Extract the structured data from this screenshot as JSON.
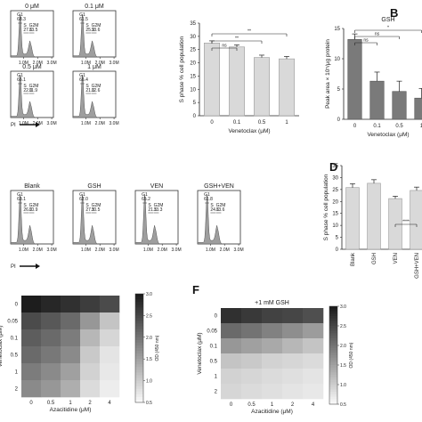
{
  "panel_letters": {
    "b": "B",
    "d": "D",
    "f": "F"
  },
  "histogram_axis": {
    "xlabel": "PI",
    "x_ticks": [
      "1.0M",
      "2.0M",
      "3.0M"
    ]
  },
  "histograms_top": [
    {
      "title": "0 μM",
      "g1": "G1",
      "s": "S",
      "g2m": "G2M",
      "g1_pct": "68.3",
      "s_pct": "27.6",
      "g2m_pct": "13.5"
    },
    {
      "title": "0.1 μM",
      "g1": "G1",
      "s": "S",
      "g2m": "G2M",
      "g1_pct": "61.5",
      "s_pct": "25.9",
      "g2m_pct": "13.6"
    },
    {
      "title": "0.5 μM",
      "g1": "G1",
      "s": "S",
      "g2m": "G2M",
      "g1_pct": "66.1",
      "s_pct": "22.0",
      "g2m_pct": "11.9"
    },
    {
      "title": "1 μM",
      "g1": "G1",
      "s": "S",
      "g2m": "G2M",
      "g1_pct": "66.4",
      "s_pct": "21.0",
      "g2m_pct": "12.6"
    }
  ],
  "histograms_bottom": [
    {
      "title": "Blank",
      "g1": "G1",
      "s": "S",
      "g2m": "G2M",
      "g1_pct": "63.1",
      "s_pct": "26.0",
      "g2m_pct": "10.9"
    },
    {
      "title": "GSH",
      "g1": "G1",
      "s": "S",
      "g2m": "G2M",
      "g1_pct": "62.0",
      "s_pct": "27.5",
      "g2m_pct": "10.5"
    },
    {
      "title": "VEN",
      "g1": "G1",
      "s": "S",
      "g2m": "G2M",
      "g1_pct": "65.2",
      "s_pct": "21.5",
      "g2m_pct": "13.3"
    },
    {
      "title": "GSH+VEN",
      "g1": "G1",
      "s": "S",
      "g2m": "G2M",
      "g1_pct": "61.8",
      "s_pct": "24.6",
      "g2m_pct": "13.6"
    }
  ],
  "chart_data": [
    {
      "id": "A_bar",
      "type": "bar",
      "categories": [
        "0",
        "0.1",
        "0.5",
        "1"
      ],
      "values": [
        27.5,
        26.0,
        22.0,
        21.5
      ],
      "errors": [
        0.8,
        0.8,
        0.9,
        0.9
      ],
      "xlabel": "Venetoclax (μM)",
      "ylabel": "S phase % cell population",
      "ylim": [
        0,
        35
      ],
      "yticks": [
        "0",
        "5",
        "10",
        "15",
        "20",
        "25",
        "30",
        "35"
      ],
      "significance": [
        "**",
        "**",
        "ns"
      ],
      "colors": {
        "bar": "#d9d9d9",
        "edge": "#9a9a9a"
      }
    },
    {
      "id": "B_bar",
      "type": "bar",
      "title": "GSH",
      "categories": [
        "0",
        "0.1",
        "0.5",
        "1"
      ],
      "values": [
        13.2,
        6.3,
        4.6,
        3.5
      ],
      "errors": [
        0.9,
        1.5,
        1.7,
        1.6
      ],
      "xlabel": "Venetoclax (μM)",
      "ylabel": "Peak area × 10⁵/μg protein",
      "ylim": [
        0,
        15
      ],
      "yticks": [
        "0",
        "5",
        "10",
        "15"
      ],
      "significance": [
        "*",
        "ns",
        "ns"
      ],
      "colors": {
        "bar": "#7a7a7a",
        "edge": "#555555"
      }
    },
    {
      "id": "D_bar",
      "type": "bar",
      "categories": [
        "Blank",
        "GSH",
        "VEN",
        "GSH+VEN"
      ],
      "values": [
        25.8,
        27.6,
        21.2,
        24.6
      ],
      "errors": [
        1.6,
        1.5,
        1.0,
        1.4
      ],
      "ylabel": "S phase % cell population",
      "ylim": [
        0,
        35
      ],
      "yticks": [
        "0",
        "5",
        "10",
        "15",
        "20",
        "25",
        "30",
        "35"
      ],
      "significance": [
        "****"
      ],
      "colors": {
        "bar": "#d9d9d9",
        "edge": "#9a9a9a"
      }
    },
    {
      "id": "E_heatmap",
      "type": "heatmap",
      "x_categories": [
        "0",
        "0.5",
        "1",
        "2",
        "4"
      ],
      "y_categories": [
        "0",
        "0.05",
        "0.1",
        "0.5",
        "1",
        "2"
      ],
      "values": [
        [
          2.95,
          2.85,
          2.75,
          2.6,
          2.45
        ],
        [
          2.45,
          2.3,
          2.1,
          1.6,
          1.1
        ],
        [
          2.25,
          2.1,
          1.9,
          1.25,
          0.9
        ],
        [
          2.1,
          1.95,
          1.75,
          1.05,
          0.75
        ],
        [
          1.9,
          1.75,
          1.5,
          0.95,
          0.7
        ],
        [
          1.75,
          1.6,
          1.35,
          0.85,
          0.65
        ]
      ],
      "xlabel": "Azacitidine (μM)",
      "ylabel": "Venetoclax (μM)",
      "colorbar_label": "OD (450 nm)",
      "vmin": 0.5,
      "vmax": 3.0,
      "colorbar_ticks": [
        "0.5",
        "1.0",
        "1.5",
        "2.0",
        "2.5",
        "3.0"
      ]
    },
    {
      "id": "F_heatmap",
      "type": "heatmap",
      "title": "+1 mM GSH",
      "x_categories": [
        "0",
        "0.5",
        "1",
        "2",
        "4"
      ],
      "y_categories": [
        "0",
        "0.05",
        "0.1",
        "0.5",
        "1",
        "2"
      ],
      "values": [
        [
          2.75,
          2.65,
          2.55,
          2.5,
          2.4
        ],
        [
          2.1,
          2.0,
          1.85,
          1.7,
          1.55
        ],
        [
          1.6,
          1.5,
          1.4,
          1.25,
          1.1
        ],
        [
          1.1,
          1.05,
          0.95,
          0.9,
          0.85
        ],
        [
          0.95,
          0.9,
          0.85,
          0.8,
          0.75
        ],
        [
          0.9,
          0.85,
          0.8,
          0.75,
          0.7
        ]
      ],
      "xlabel": "Azacitidine (μM)",
      "ylabel": "Venetoclax (μM)",
      "colorbar_label": "OD (450 nm)",
      "vmin": 0.5,
      "vmax": 3.0,
      "colorbar_ticks": [
        "0.5",
        "1.0",
        "1.5",
        "2.0",
        "2.5",
        "3.0"
      ]
    }
  ]
}
